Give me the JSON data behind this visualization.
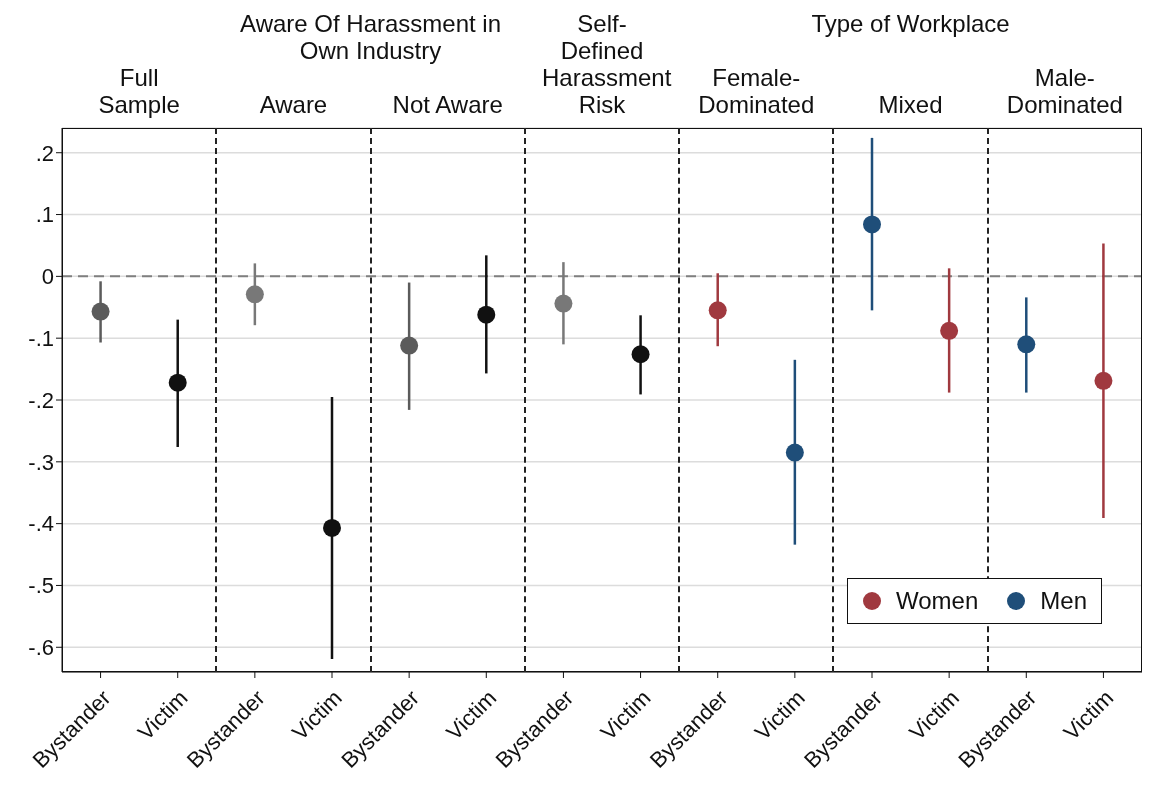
{
  "chart_data": {
    "type": "scatter",
    "categories": [
      "Bystander",
      "Victim",
      "Bystander",
      "Victim",
      "Bystander",
      "Victim",
      "Bystander",
      "Victim",
      "Bystander",
      "Victim",
      "Bystander",
      "Victim",
      "Bystander",
      "Victim"
    ],
    "series": [
      {
        "colors": [
          "#5b5b5b",
          "#111111",
          "#787878",
          "#111111",
          "#5b5b5b",
          "#111111",
          "#787878",
          "#111111",
          null,
          null,
          null,
          null,
          null,
          null
        ],
        "values": [
          -0.057,
          -0.172,
          -0.029,
          -0.407,
          -0.112,
          -0.062,
          -0.044,
          -0.126,
          null,
          null,
          null,
          null,
          null,
          null
        ],
        "errors": [
          [
            -0.107,
            -0.008
          ],
          [
            -0.276,
            -0.07
          ],
          [
            -0.079,
            0.021
          ],
          [
            -0.619,
            -0.195
          ],
          [
            -0.216,
            -0.01
          ],
          [
            -0.157,
            0.034
          ],
          [
            -0.11,
            0.023
          ],
          [
            -0.191,
            -0.063
          ],
          null,
          null,
          null,
          null,
          null,
          null
        ]
      },
      {
        "name": "Women",
        "color": "#a0393f",
        "values": [
          null,
          null,
          null,
          null,
          null,
          null,
          null,
          null,
          -0.055,
          null,
          null,
          -0.088,
          null,
          -0.169
        ],
        "errors": [
          null,
          null,
          null,
          null,
          null,
          null,
          null,
          null,
          [
            -0.113,
            0.005
          ],
          null,
          null,
          [
            -0.188,
            0.013
          ],
          null,
          [
            -0.391,
            0.053
          ]
        ]
      },
      {
        "name": "Men",
        "color": "#1f4e79",
        "values": [
          null,
          null,
          null,
          null,
          null,
          null,
          null,
          null,
          null,
          -0.285,
          0.084,
          null,
          -0.11,
          null
        ],
        "errors": [
          null,
          null,
          null,
          null,
          null,
          null,
          null,
          null,
          null,
          [
            -0.434,
            -0.135
          ],
          [
            -0.055,
            0.224
          ],
          null,
          [
            -0.188,
            -0.034
          ],
          null
        ]
      }
    ],
    "ylim": [
      -0.64,
      0.24
    ],
    "yticks": [
      {
        "value": -0.6,
        "label": "-.6"
      },
      {
        "value": -0.5,
        "label": "-.5"
      },
      {
        "value": -0.4,
        "label": "-.4"
      },
      {
        "value": -0.3,
        "label": "-.3"
      },
      {
        "value": -0.2,
        "label": "-.2"
      },
      {
        "value": -0.1,
        "label": "-.1"
      },
      0,
      {
        "value": 0.1,
        "label": ".1"
      },
      {
        "value": 0.2,
        "label": ".2"
      }
    ],
    "ref_lines": [
      {
        "axis": "y",
        "value": 0,
        "color": "#7f7f7f",
        "line_style": "dashed"
      }
    ],
    "grid": "y",
    "legend": "bottom right",
    "marker": "circle",
    "annotations": [
      "Full Sample",
      "Aware Of Harassment in Own Industry",
      "Aware",
      "Not Aware",
      "Self-Defined Harassment Risk",
      "Type of Workplace",
      "Female-Dominated",
      "Mixed",
      "Male-Dominated"
    ]
  }
}
